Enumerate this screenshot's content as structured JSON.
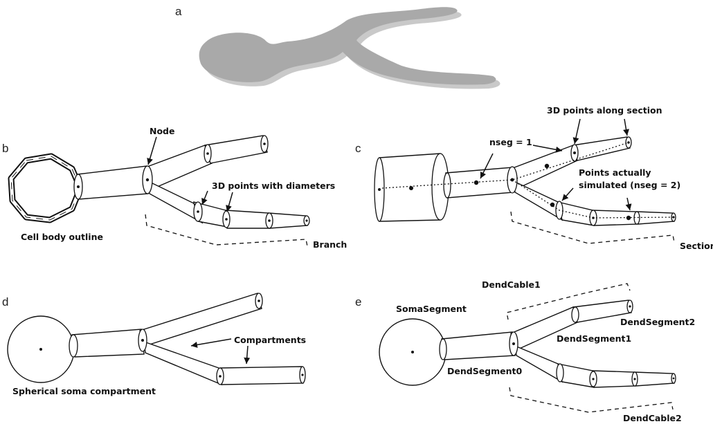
{
  "panels": {
    "a": {
      "letter": "a"
    },
    "b": {
      "letter": "b",
      "node": "Node",
      "points_with_diameters": "3D points with diameters",
      "cell_body": "Cell body outline",
      "branch": "Branch"
    },
    "c": {
      "letter": "c",
      "points_along": "3D points along section",
      "nseg1": "nseg = 1",
      "points_sim1": "Points actually",
      "points_sim2": "simulated (nseg = 2)",
      "section": "Section"
    },
    "d": {
      "letter": "d",
      "compartments": "Compartments",
      "soma": "Spherical soma compartment"
    },
    "e": {
      "letter": "e",
      "soma_segment": "SomaSegment",
      "dend_cable1": "DendCable1",
      "dend_segment2": "DendSegment2",
      "dend_segment1": "DendSegment1",
      "dend_segment0": "DendSegment0",
      "dend_cable2": "DendCable2"
    }
  },
  "colors": {
    "ink": "#111111",
    "neuron_fill": "#a9a9a9",
    "neuron_shadow": "#c9c9c9"
  }
}
